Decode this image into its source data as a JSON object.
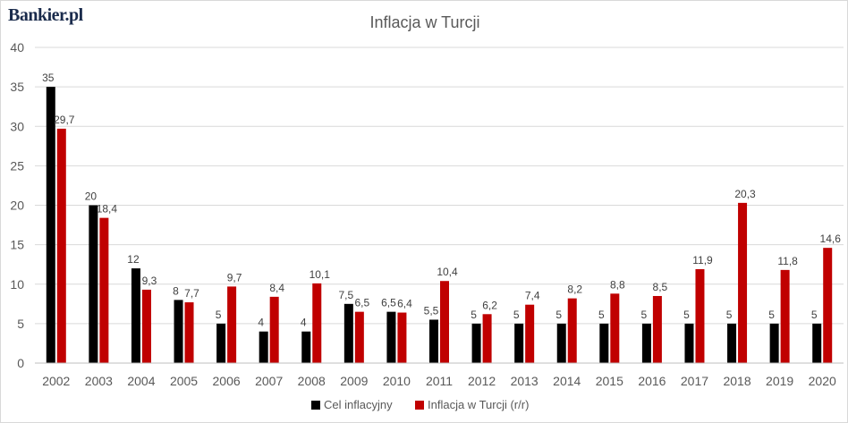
{
  "logo": "Bankier.pl",
  "colors": {
    "cel": "#000000",
    "inflacja": "#c00000",
    "grid": "#d9d9d9"
  },
  "chart_data": {
    "type": "bar",
    "title": "Inflacja w Turcji",
    "categories": [
      "2002",
      "2003",
      "2004",
      "2005",
      "2006",
      "2007",
      "2008",
      "2009",
      "2010",
      "2011",
      "2012",
      "2013",
      "2014",
      "2015",
      "2016",
      "2017",
      "2018",
      "2019",
      "2020"
    ],
    "series": [
      {
        "name": "Cel inflacyjny",
        "values": [
          35,
          20,
          12,
          8,
          5,
          4,
          4,
          7.5,
          6.5,
          5.5,
          5,
          5,
          5,
          5,
          5,
          5,
          5,
          5,
          5
        ],
        "labels": [
          "35",
          "20",
          "12",
          "8",
          "5",
          "4",
          "4",
          "7,5",
          "6,5",
          "5,5",
          "5",
          "5",
          "5",
          "5",
          "5",
          "5",
          "5",
          "5",
          "5"
        ]
      },
      {
        "name": "Inflacja w Turcji (r/r)",
        "values": [
          29.7,
          18.4,
          9.3,
          7.7,
          9.7,
          8.4,
          10.1,
          6.5,
          6.4,
          10.4,
          6.2,
          7.4,
          8.2,
          8.8,
          8.5,
          11.9,
          20.3,
          11.8,
          14.6
        ],
        "labels": [
          "29,7",
          "18,4",
          "9,3",
          "7,7",
          "9,7",
          "8,4",
          "10,1",
          "6,5",
          "6,4",
          "10,4",
          "6,2",
          "7,4",
          "8,2",
          "8,8",
          "8,5",
          "11,9",
          "20,3",
          "11,8",
          "14,6"
        ]
      }
    ],
    "ylim": [
      0,
      40
    ],
    "yticks": [
      "0",
      "5",
      "10",
      "15",
      "20",
      "25",
      "30",
      "35",
      "40"
    ],
    "grid": true,
    "legend_position": "bottom"
  }
}
